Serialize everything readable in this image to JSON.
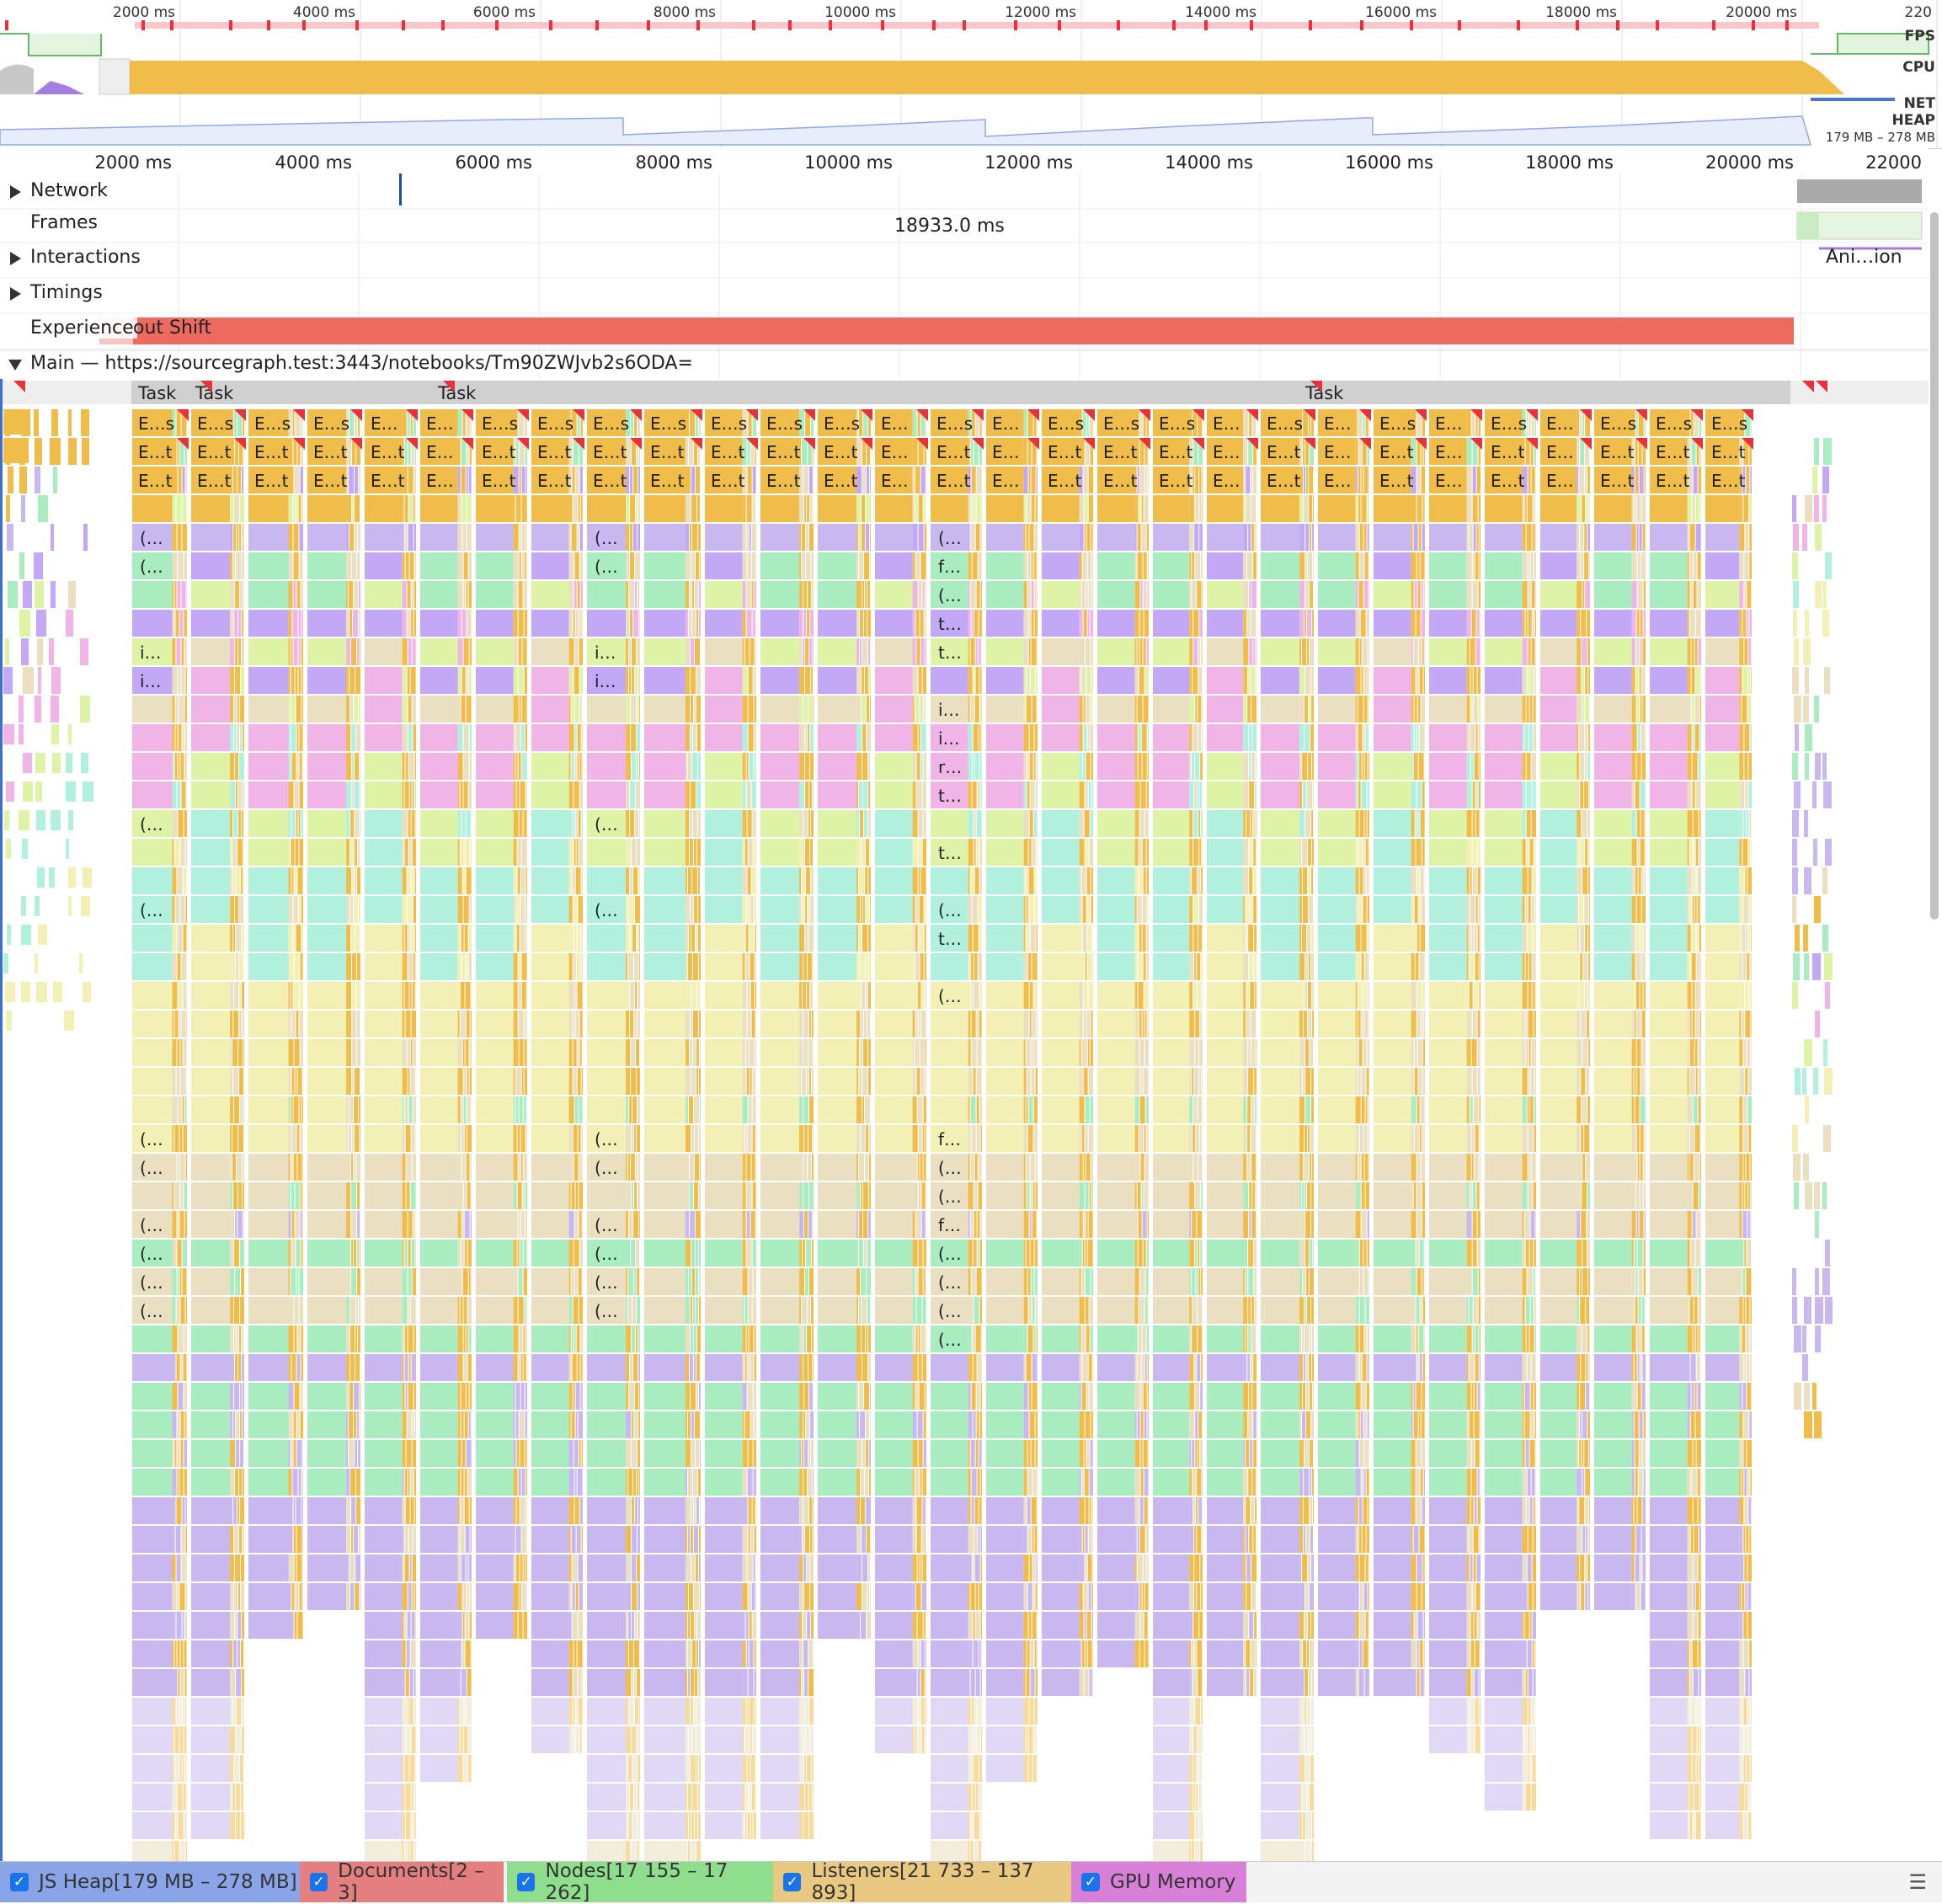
{
  "overview": {
    "ticks": [
      "2000 ms",
      "4000 ms",
      "6000 ms",
      "8000 ms",
      "10000 ms",
      "12000 ms",
      "14000 ms",
      "16000 ms",
      "18000 ms",
      "20000 ms",
      "220"
    ],
    "fps_label": "FPS",
    "cpu_label": "CPU",
    "net_label": "NET",
    "heap_label": "HEAP",
    "heap_range": "179 MB – 278 MB",
    "colors": {
      "cpu_scripting": "#f0bc4a",
      "fps": "#68b868",
      "heap": "#8fa9e8",
      "red_marker": "#e8323b"
    }
  },
  "ruler": {
    "ticks": [
      "2000 ms",
      "4000 ms",
      "6000 ms",
      "8000 ms",
      "10000 ms",
      "12000 ms",
      "14000 ms",
      "16000 ms",
      "18000 ms",
      "20000 ms",
      "22000"
    ]
  },
  "tracks": {
    "network": "Network",
    "frames": "Frames",
    "frame_duration": "18933.0 ms",
    "interactions": "Interactions",
    "interaction_label": "Ani…ion",
    "timings": "Timings",
    "experience": "Experience",
    "layout_shift": "out Shift",
    "main": "Main — https://sourcegraph.test:3443/notebooks/Tm90ZWJvb2s6ODA="
  },
  "flame": {
    "task_label": "Task",
    "row2_labels": [
      "E…s",
      "E…s",
      "E…s",
      "E…s",
      "E…",
      "E…",
      "E…s",
      "E…s",
      "E…s",
      "E…s",
      "E…s",
      "E…s",
      "E…s",
      "E…",
      "E…s",
      "E…",
      "E…s",
      "E…s",
      "E…s",
      "E…",
      "E…s",
      "E…",
      "E…s",
      "E…",
      "E…s",
      "E…",
      "E…s",
      "E…s",
      "E…s"
    ],
    "row3_labels": [
      "E…t",
      "E…t",
      "E…t",
      "E…t",
      "E…t",
      "E…",
      "E…t",
      "E…t",
      "E…t",
      "E…t",
      "E…t",
      "E…t",
      "E…t",
      "E…",
      "E…t",
      "E…",
      "E…t",
      "E…t",
      "E…t",
      "E…",
      "E…t",
      "E…",
      "E…t",
      "E…",
      "E…t",
      "E…",
      "E…t",
      "E…t",
      "E…t"
    ],
    "col_a_labels": [
      "(…",
      "(…",
      "",
      "",
      "i…",
      "i…",
      "",
      "",
      "",
      "",
      "(…",
      "",
      "",
      "(…",
      "",
      "",
      "",
      "",
      "",
      "",
      "",
      "(…",
      "(…",
      "",
      "(…",
      "(…",
      "(…",
      "(…"
    ],
    "col_c_labels": [
      "(…",
      "f…",
      "(…",
      "t…",
      "t…",
      "",
      "i…",
      "i…",
      "r…",
      "t…",
      "",
      "t…",
      "",
      "(…",
      "t…",
      "",
      "(…",
      "",
      "",
      "",
      "",
      "f…",
      "(…",
      "(…",
      "f…",
      "(…",
      "(…",
      "(…",
      "(…"
    ],
    "colors": {
      "task": "#d0d0d0",
      "event": "#f0bc4a",
      "purple": "#c9b8ef",
      "green": "#a9ecbf",
      "lime": "#dff3a6",
      "violet": "#c3a8f5",
      "pink": "#f0b4e6",
      "yellow": "#f2f0b4",
      "aqua": "#b0f0dc",
      "tan": "#eadfc0",
      "blue": "#b3d3f5"
    }
  },
  "footer": {
    "js_heap": "JS Heap[179 MB – 278 MB]",
    "documents": "Documents[2 – 3]",
    "nodes": "Nodes[17 155 – 17 262]",
    "listeners": "Listeners[21 733 – 137 893]",
    "gpu": "GPU Memory",
    "colors": {
      "js_heap": "#8aa4e8",
      "documents": "#e57f7f",
      "nodes": "#8ede8e",
      "listeners": "#e9c882",
      "gpu": "#d880d8"
    }
  }
}
